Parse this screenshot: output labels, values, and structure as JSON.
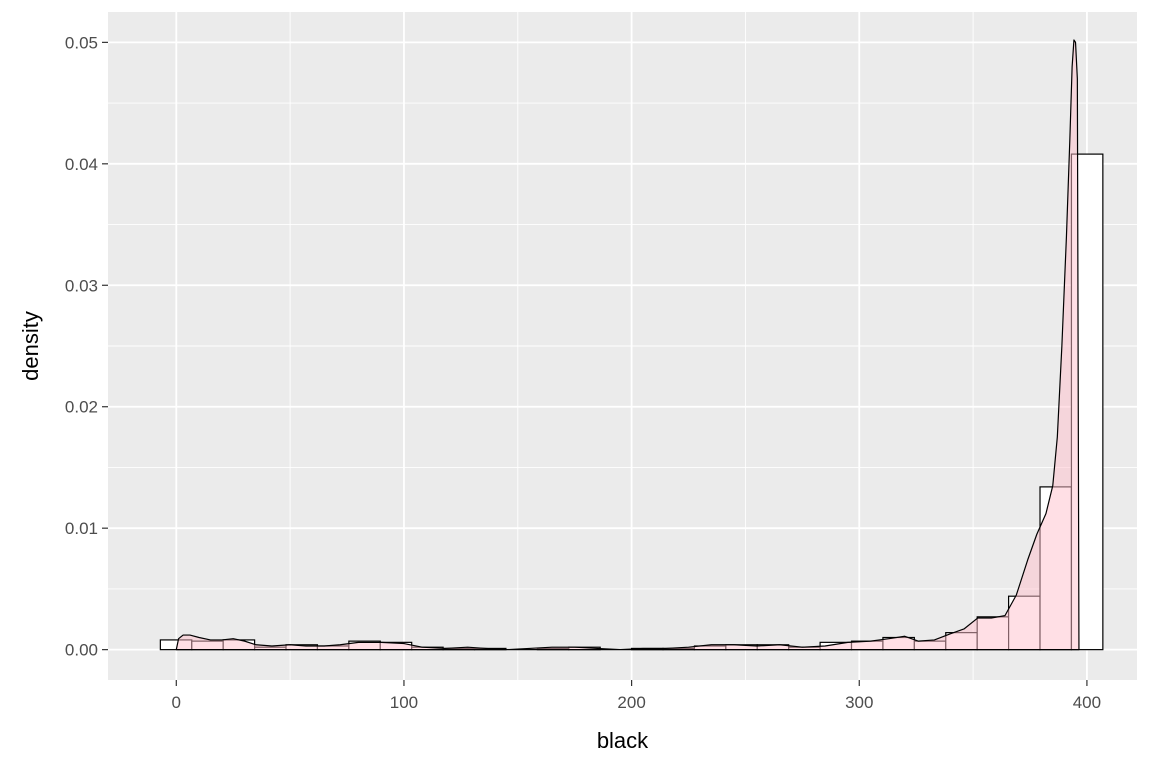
{
  "chart_data": {
    "type": "bar",
    "subtype": "histogram-with-density",
    "xlabel": "black",
    "ylabel": "density",
    "xlim": [
      -30,
      422
    ],
    "ylim": [
      -0.0025,
      0.0525
    ],
    "x_ticks": [
      0,
      100,
      200,
      300,
      400
    ],
    "x_tick_labels": [
      "0",
      "100",
      "200",
      "300",
      "400"
    ],
    "y_ticks": [
      0,
      0.01,
      0.02,
      0.03,
      0.04,
      0.05
    ],
    "y_tick_labels": [
      "0.00",
      "0.01",
      "0.02",
      "0.03",
      "0.04",
      "0.05"
    ],
    "grid": true,
    "legend": "none",
    "colors": {
      "panel": "#ebebeb",
      "grid": "#ffffff",
      "bar_fill": "#ffffff",
      "bar_stroke": "#000000",
      "density_fill": "#ffc0cb",
      "density_stroke": "#000000"
    },
    "bin_width": 13.8,
    "bins": [
      {
        "x0": -7,
        "x1": 6.8,
        "value": 0.0008
      },
      {
        "x0": 6.8,
        "x1": 20.6,
        "value": 0.0007
      },
      {
        "x0": 20.6,
        "x1": 34.4,
        "value": 0.0008
      },
      {
        "x0": 34.4,
        "x1": 48.2,
        "value": 0.0002
      },
      {
        "x0": 48.2,
        "x1": 62.0,
        "value": 0.0004
      },
      {
        "x0": 62.0,
        "x1": 75.8,
        "value": 0.0003
      },
      {
        "x0": 75.8,
        "x1": 89.6,
        "value": 0.0007
      },
      {
        "x0": 89.6,
        "x1": 103.4,
        "value": 0.0006
      },
      {
        "x0": 103.4,
        "x1": 117.2,
        "value": 0.0002
      },
      {
        "x0": 117.2,
        "x1": 131.0,
        "value": 0.0001
      },
      {
        "x0": 131.0,
        "x1": 144.8,
        "value": 0.0001
      },
      {
        "x0": 144.8,
        "x1": 158.6,
        "value": 0.0
      },
      {
        "x0": 158.6,
        "x1": 172.4,
        "value": 0.0001
      },
      {
        "x0": 172.4,
        "x1": 186.2,
        "value": 0.0002
      },
      {
        "x0": 186.2,
        "x1": 200.0,
        "value": 0.0
      },
      {
        "x0": 200.0,
        "x1": 213.8,
        "value": 0.0001
      },
      {
        "x0": 213.8,
        "x1": 227.6,
        "value": 0.0001
      },
      {
        "x0": 227.6,
        "x1": 241.4,
        "value": 0.0003
      },
      {
        "x0": 241.4,
        "x1": 255.2,
        "value": 0.0004
      },
      {
        "x0": 255.2,
        "x1": 269.0,
        "value": 0.0004
      },
      {
        "x0": 269.0,
        "x1": 282.8,
        "value": 0.0002
      },
      {
        "x0": 282.8,
        "x1": 296.6,
        "value": 0.0006
      },
      {
        "x0": 296.6,
        "x1": 310.4,
        "value": 0.0007
      },
      {
        "x0": 310.4,
        "x1": 324.2,
        "value": 0.001
      },
      {
        "x0": 324.2,
        "x1": 338.0,
        "value": 0.0007
      },
      {
        "x0": 338.0,
        "x1": 351.8,
        "value": 0.0014
      },
      {
        "x0": 351.8,
        "x1": 365.6,
        "value": 0.0027
      },
      {
        "x0": 365.6,
        "x1": 379.4,
        "value": 0.0044
      },
      {
        "x0": 379.4,
        "x1": 393.2,
        "value": 0.0134
      },
      {
        "x0": 393.2,
        "x1": 407.0,
        "value": 0.0408
      }
    ],
    "density": [
      [
        0,
        0.0
      ],
      [
        1,
        0.0009
      ],
      [
        3,
        0.0012
      ],
      [
        6,
        0.0012
      ],
      [
        10,
        0.001
      ],
      [
        15,
        0.0008
      ],
      [
        20,
        0.0008
      ],
      [
        25,
        0.0009
      ],
      [
        30,
        0.0007
      ],
      [
        35,
        0.0004
      ],
      [
        42,
        0.0003
      ],
      [
        50,
        0.0004
      ],
      [
        57,
        0.0003
      ],
      [
        65,
        0.0003
      ],
      [
        72,
        0.0004
      ],
      [
        80,
        0.0006
      ],
      [
        90,
        0.0006
      ],
      [
        100,
        0.0005
      ],
      [
        108,
        0.0002
      ],
      [
        118,
        0.0001
      ],
      [
        128,
        0.0002
      ],
      [
        136,
        0.0001
      ],
      [
        145,
        0.0
      ],
      [
        155,
        0.0001
      ],
      [
        165,
        0.0002
      ],
      [
        175,
        0.0002
      ],
      [
        185,
        0.0001
      ],
      [
        195,
        0.0
      ],
      [
        205,
        0.0001
      ],
      [
        215,
        0.0001
      ],
      [
        225,
        0.0002
      ],
      [
        235,
        0.0004
      ],
      [
        245,
        0.0004
      ],
      [
        255,
        0.0003
      ],
      [
        265,
        0.0004
      ],
      [
        275,
        0.0002
      ],
      [
        285,
        0.0003
      ],
      [
        295,
        0.0006
      ],
      [
        305,
        0.0007
      ],
      [
        313,
        0.0009
      ],
      [
        320,
        0.0011
      ],
      [
        326,
        0.0007
      ],
      [
        333,
        0.0008
      ],
      [
        340,
        0.0013
      ],
      [
        346,
        0.0017
      ],
      [
        352,
        0.0026
      ],
      [
        358,
        0.0026
      ],
      [
        364,
        0.0028
      ],
      [
        369,
        0.0045
      ],
      [
        374,
        0.0074
      ],
      [
        378,
        0.0095
      ],
      [
        382,
        0.0112
      ],
      [
        385,
        0.0135
      ],
      [
        387,
        0.0175
      ],
      [
        389,
        0.025
      ],
      [
        391,
        0.034
      ],
      [
        392.5,
        0.042
      ],
      [
        393.5,
        0.048
      ],
      [
        394.3,
        0.0502
      ],
      [
        395,
        0.05
      ],
      [
        395.8,
        0.047
      ],
      [
        396.5,
        0.0
      ],
      [
        396.5,
        0.0
      ]
    ]
  }
}
